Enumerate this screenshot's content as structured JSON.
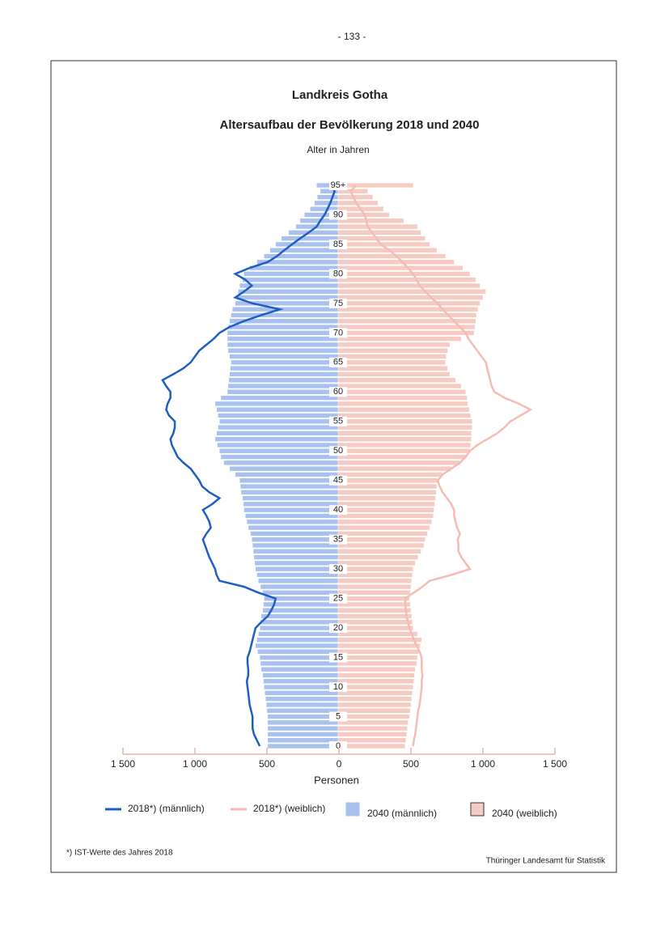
{
  "page_number": "- 133 -",
  "chart_data": {
    "type": "population-pyramid",
    "title": "Landkreis Gotha",
    "subtitle": "Altersaufbau der Bevölkerung 2018 und 2040",
    "y_label": "Alter in Jahren",
    "x_label": "Personen",
    "categories": [
      "0",
      null,
      null,
      null,
      null,
      "5",
      null,
      null,
      null,
      null,
      "10",
      null,
      null,
      null,
      null,
      "15",
      null,
      null,
      null,
      null,
      "20",
      null,
      null,
      null,
      null,
      "25",
      null,
      null,
      null,
      null,
      "30",
      null,
      null,
      null,
      null,
      "35",
      null,
      null,
      null,
      null,
      "40",
      null,
      null,
      null,
      null,
      "45",
      null,
      null,
      null,
      null,
      "50",
      null,
      null,
      null,
      null,
      "55",
      null,
      null,
      null,
      null,
      "60",
      null,
      null,
      null,
      null,
      "65",
      null,
      null,
      null,
      null,
      "70",
      null,
      null,
      null,
      null,
      "75",
      null,
      null,
      null,
      null,
      "80",
      null,
      null,
      null,
      null,
      "85",
      null,
      null,
      null,
      null,
      "90",
      null,
      null,
      null,
      null,
      "95+"
    ],
    "xlim": [
      -1500,
      1500
    ],
    "xticks": [
      {
        "value": -1500,
        "label": "1 500"
      },
      {
        "value": -1000,
        "label": "1 000"
      },
      {
        "value": -500,
        "label": "500"
      },
      0,
      500,
      {
        "value": 1000,
        "label": "1 000"
      },
      {
        "value": 1500,
        "label": "1 500"
      }
    ],
    "series": [
      {
        "name": "2018*) (männlich)",
        "type": "line",
        "side": "left",
        "color": "#1f5fc4",
        "values": [
          550,
          570,
          590,
          600,
          600,
          600,
          610,
          620,
          625,
          630,
          635,
          640,
          630,
          630,
          635,
          635,
          620,
          610,
          600,
          590,
          580,
          540,
          495,
          470,
          450,
          440,
          560,
          660,
          830,
          850,
          860,
          880,
          900,
          915,
          930,
          945,
          920,
          890,
          900,
          920,
          945,
          880,
          830,
          900,
          950,
          970,
          1000,
          1030,
          1080,
          1120,
          1140,
          1160,
          1170,
          1150,
          1140,
          1140,
          1180,
          1200,
          1190,
          1170,
          1170,
          1200,
          1225,
          1150,
          1080,
          1030,
          1000,
          970,
          920,
          870,
          830,
          760,
          660,
          540,
          410,
          600,
          720,
          660,
          605,
          650,
          720,
          620,
          495,
          430,
          380,
          325,
          270,
          210,
          155,
          130,
          100,
          80,
          60,
          45,
          30,
          60
        ]
      },
      {
        "name": "2018*) (weiblich)",
        "type": "line",
        "side": "right",
        "color": "#f3bdb3",
        "values": [
          515,
          520,
          530,
          535,
          540,
          545,
          550,
          560,
          565,
          570,
          575,
          575,
          580,
          575,
          575,
          575,
          560,
          540,
          520,
          505,
          490,
          480,
          470,
          465,
          460,
          460,
          520,
          580,
          630,
          780,
          910,
          880,
          850,
          830,
          830,
          825,
          840,
          820,
          810,
          800,
          800,
          780,
          750,
          720,
          700,
          685,
          720,
          780,
          840,
          880,
          910,
          960,
          1030,
          1100,
          1150,
          1190,
          1260,
          1330,
          1250,
          1150,
          1080,
          1060,
          1050,
          1040,
          1030,
          1020,
          990,
          960,
          930,
          900,
          880,
          840,
          800,
          760,
          720,
          685,
          640,
          600,
          560,
          540,
          515,
          480,
          440,
          400,
          350,
          290,
          260,
          230,
          200,
          190,
          180,
          150,
          120,
          100,
          80,
          120
        ]
      },
      {
        "name": "2040 (männlich)",
        "type": "bar",
        "side": "left",
        "color": "#a9c1ee",
        "values": [
          495,
          495,
          495,
          495,
          495,
          495,
          500,
          505,
          510,
          515,
          520,
          525,
          530,
          540,
          545,
          550,
          565,
          580,
          570,
          560,
          550,
          545,
          540,
          530,
          525,
          520,
          530,
          545,
          560,
          570,
          580,
          585,
          590,
          595,
          600,
          605,
          615,
          630,
          640,
          650,
          660,
          665,
          670,
          680,
          685,
          690,
          720,
          760,
          800,
          820,
          830,
          845,
          860,
          850,
          840,
          830,
          840,
          850,
          860,
          820,
          775,
          770,
          765,
          760,
          755,
          750,
          760,
          770,
          775,
          775,
          775,
          770,
          760,
          750,
          740,
          720,
          710,
          700,
          690,
          670,
          660,
          620,
          570,
          520,
          480,
          440,
          400,
          350,
          300,
          270,
          240,
          200,
          170,
          150,
          130,
          155
        ]
      },
      {
        "name": "2040 (weiblich)",
        "type": "bar",
        "side": "right",
        "color": "#f6cbc3",
        "values": [
          460,
          465,
          470,
          475,
          480,
          490,
          495,
          500,
          505,
          510,
          515,
          520,
          525,
          530,
          540,
          545,
          555,
          565,
          575,
          545,
          515,
          510,
          505,
          500,
          495,
          490,
          495,
          500,
          505,
          510,
          515,
          530,
          550,
          570,
          590,
          600,
          615,
          630,
          645,
          655,
          660,
          665,
          670,
          675,
          680,
          685,
          720,
          780,
          840,
          880,
          910,
          915,
          920,
          920,
          925,
          925,
          915,
          905,
          895,
          890,
          880,
          850,
          810,
          770,
          755,
          740,
          745,
          755,
          770,
          850,
          940,
          945,
          950,
          955,
          965,
          980,
          1000,
          1020,
          980,
          950,
          910,
          860,
          800,
          740,
          680,
          630,
          600,
          570,
          545,
          450,
          350,
          310,
          270,
          235,
          200,
          515
        ]
      }
    ],
    "footnote": "*) IST-Werte des Jahres 2018",
    "source": "Thüringer Landesamt für Statistik"
  }
}
